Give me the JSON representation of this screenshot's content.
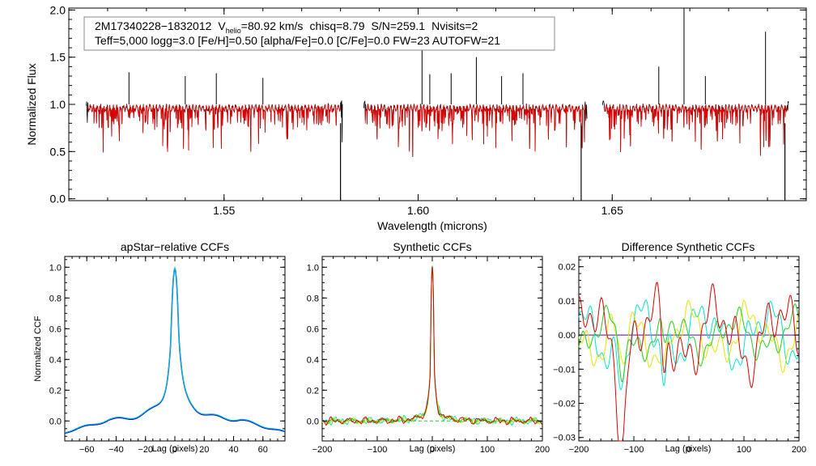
{
  "chart_data": [
    {
      "id": "spectrum",
      "type": "line",
      "title_line1": {
        "obj": "2M17340228−1832012",
        "v_label": "V",
        "v_sub": "helio",
        "v_value": "=80.92 km/s",
        "chisq": "chisq=8.79",
        "snr": "S/N=259.1",
        "nvisits": "Nvisits=2"
      },
      "title_line2": "Teff=5,000 logg=3.0 [Fe/H]=0.50 [alpha/Fe]=0.0 [C/Fe]=0.0 FW=23 AUTOFW=21",
      "xlabel": "Wavelength (microns)",
      "ylabel": "Normalized Flux",
      "xlim": [
        1.51,
        1.7
      ],
      "ylim": [
        -0.02,
        2.02
      ],
      "xticks": [
        {
          "v": 1.55,
          "label": "1.55"
        },
        {
          "v": 1.6,
          "label": "1.60"
        },
        {
          "v": 1.65,
          "label": "1.65"
        }
      ],
      "yticks": [
        {
          "v": 0.0,
          "label": "0.0"
        },
        {
          "v": 0.5,
          "label": "0.5"
        },
        {
          "v": 1.0,
          "label": "1.0"
        },
        {
          "v": 1.5,
          "label": "1.5"
        },
        {
          "v": 2.0,
          "label": "2.0"
        }
      ],
      "chips": [
        [
          1.5145,
          1.5805
        ],
        [
          1.586,
          1.6435
        ],
        [
          1.6475,
          1.6955
        ]
      ],
      "spikes": [
        {
          "x": 1.5255,
          "y": 1.34
        },
        {
          "x": 1.54,
          "y": 1.3
        },
        {
          "x": 1.548,
          "y": 1.33
        },
        {
          "x": 1.56,
          "y": 1.28
        },
        {
          "x": 1.601,
          "y": 1.72
        },
        {
          "x": 1.603,
          "y": 1.32
        },
        {
          "x": 1.6085,
          "y": 1.33
        },
        {
          "x": 1.615,
          "y": 1.5
        },
        {
          "x": 1.6215,
          "y": 1.3
        },
        {
          "x": 1.627,
          "y": 1.33
        },
        {
          "x": 1.662,
          "y": 1.4
        },
        {
          "x": 1.6685,
          "y": 2.05
        },
        {
          "x": 1.674,
          "y": 1.3
        },
        {
          "x": 1.6895,
          "y": 1.77
        }
      ],
      "dips": [
        {
          "x": 1.58,
          "y": -0.05
        },
        {
          "x": 1.642,
          "y": -0.05
        },
        {
          "x": 1.6945,
          "y": -0.05
        }
      ],
      "colors": {
        "observed": "#000000",
        "model": "#e00000"
      }
    },
    {
      "id": "apstar-ccf",
      "type": "line",
      "title": "apStar−relative CCFs",
      "xlabel": "Lag (pixels)",
      "ylabel": "Normalized CCF",
      "xlim": [
        -75,
        75
      ],
      "ylim": [
        -0.13,
        1.07
      ],
      "xticks": [
        {
          "v": -60,
          "label": "−60"
        },
        {
          "v": -40,
          "label": "−40"
        },
        {
          "v": -20,
          "label": "−20"
        },
        {
          "v": 0,
          "label": "0"
        },
        {
          "v": 20,
          "label": "20"
        },
        {
          "v": 40,
          "label": "40"
        },
        {
          "v": 60,
          "label": "60"
        }
      ],
      "yticks": [
        {
          "v": 0.0,
          "label": "0.0"
        },
        {
          "v": 0.2,
          "label": "0.2"
        },
        {
          "v": 0.4,
          "label": "0.4"
        },
        {
          "v": 0.6,
          "label": "0.6"
        },
        {
          "v": 0.8,
          "label": "0.8"
        },
        {
          "v": 1.0,
          "label": "1.0"
        }
      ],
      "peak": 0.99,
      "series_colors": [
        "#0000cc",
        "#00bcd4"
      ]
    },
    {
      "id": "synthetic-ccf",
      "type": "line",
      "title": "Synthetic CCFs",
      "xlabel": "Lag (pixels)",
      "xlim": [
        -200,
        200
      ],
      "ylim": [
        -0.13,
        1.07
      ],
      "xticks": [
        {
          "v": -200,
          "label": "−200"
        },
        {
          "v": -100,
          "label": "−100"
        },
        {
          "v": 0,
          "label": "0"
        },
        {
          "v": 100,
          "label": "100"
        },
        {
          "v": 200,
          "label": "200"
        }
      ],
      "yticks": [
        {
          "v": 0.0,
          "label": "0.0"
        },
        {
          "v": 0.2,
          "label": "0.2"
        },
        {
          "v": 0.4,
          "label": "0.4"
        },
        {
          "v": 0.6,
          "label": "0.6"
        },
        {
          "v": 0.8,
          "label": "0.8"
        },
        {
          "v": 1.0,
          "label": "1.0"
        }
      ],
      "peak": 1.0,
      "series_colors": [
        "#00e5cc",
        "#e5e500",
        "#22cc22",
        "#e00000"
      ],
      "baseline": 0.0
    },
    {
      "id": "difference-ccf",
      "type": "line",
      "title": "Difference Synthetic CCFs",
      "xlabel": "Lag (pixels)",
      "xlim": [
        -200,
        200
      ],
      "ylim": [
        -0.031,
        0.023
      ],
      "xticks": [
        {
          "v": -200,
          "label": "−200"
        },
        {
          "v": -100,
          "label": "−100"
        },
        {
          "v": 0,
          "label": "0"
        },
        {
          "v": 100,
          "label": "100"
        },
        {
          "v": 200,
          "label": "200"
        }
      ],
      "yticks": [
        {
          "v": -0.03,
          "label": "−0.03"
        },
        {
          "v": -0.02,
          "label": "−0.02"
        },
        {
          "v": -0.01,
          "label": "−0.01"
        },
        {
          "v": 0.0,
          "label": "0.00"
        },
        {
          "v": 0.01,
          "label": "0.01"
        },
        {
          "v": 0.02,
          "label": "0.02"
        }
      ],
      "series_colors": [
        "#00e5cc",
        "#e5e500",
        "#22cc22",
        "#e00000"
      ],
      "zero_line_color": "#5b00b5"
    }
  ]
}
